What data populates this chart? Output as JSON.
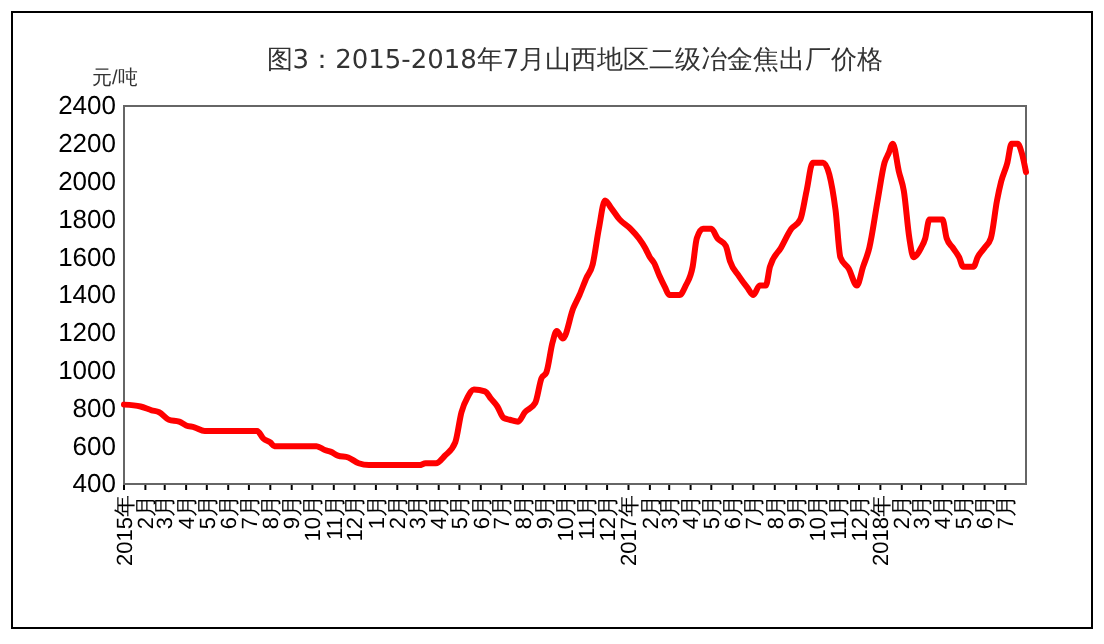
{
  "chart_data": {
    "type": "line",
    "title": "图3：2015-2018年7月山西地区二级冶金焦出厂价格",
    "ylabel": "元/吨",
    "x": [
      "2015-01-01",
      "2015-01-25",
      "2015-02-10",
      "2015-02-21",
      "2015-03-07",
      "2015-03-22",
      "2015-04-01",
      "2015-04-13",
      "2015-04-28",
      "2015-07-13",
      "2015-07-22",
      "2015-08-01",
      "2015-08-07",
      "2015-10-07",
      "2015-10-19",
      "2015-10-28",
      "2015-11-07",
      "2015-11-22",
      "2015-12-07",
      "2015-12-22",
      "2016-03-04",
      "2016-03-13",
      "2016-03-28",
      "2016-04-10",
      "2016-04-25",
      "2016-05-04",
      "2016-05-13",
      "2016-05-22",
      "2016-06-07",
      "2016-06-16",
      "2016-06-25",
      "2016-07-04",
      "2016-07-13",
      "2016-07-25",
      "2016-08-04",
      "2016-08-19",
      "2016-08-28",
      "2016-09-04",
      "2016-09-13",
      "2016-09-19",
      "2016-09-28",
      "2016-10-13",
      "2016-10-22",
      "2016-11-01",
      "2016-11-10",
      "2016-11-19",
      "2016-11-28",
      "2016-12-07",
      "2016-12-19",
      "2017-01-04",
      "2017-01-16",
      "2017-01-25",
      "2017-02-01",
      "2017-02-07",
      "2017-02-15",
      "2017-02-23",
      "2017-03-01",
      "2017-03-16",
      "2017-03-25",
      "2017-04-04",
      "2017-04-10",
      "2017-04-19",
      "2017-05-01",
      "2017-05-10",
      "2017-05-22",
      "2017-05-28",
      "2017-06-10",
      "2017-06-22",
      "2017-07-01",
      "2017-07-10",
      "2017-07-19",
      "2017-07-25",
      "2017-08-10",
      "2017-08-25",
      "2017-09-07",
      "2017-09-16",
      "2017-09-25",
      "2017-10-10",
      "2017-10-28",
      "2017-11-04",
      "2017-11-16",
      "2017-11-28",
      "2017-12-07",
      "2017-12-16",
      "2017-12-28",
      "2018-01-07",
      "2018-01-13",
      "2018-01-19",
      "2018-01-28",
      "2018-02-04",
      "2018-02-12",
      "2018-02-18",
      "2018-03-01",
      "2018-03-07",
      "2018-03-13",
      "2018-04-01",
      "2018-04-07",
      "2018-04-16",
      "2018-04-25",
      "2018-05-01",
      "2018-05-16",
      "2018-05-22",
      "2018-06-01",
      "2018-06-10",
      "2018-06-19",
      "2018-06-25",
      "2018-07-04",
      "2018-07-10",
      "2018-07-19",
      "2018-07-25",
      "2018-07-31"
    ],
    "series": [
      {
        "color": "#ff0000",
        "values": [
          820,
          810,
          790,
          780,
          740,
          730,
          710,
          700,
          680,
          680,
          640,
          620,
          600,
          600,
          580,
          570,
          550,
          540,
          510,
          500,
          500,
          510,
          510,
          550,
          620,
          780,
          860,
          900,
          890,
          850,
          810,
          750,
          740,
          730,
          780,
          830,
          960,
          990,
          1150,
          1210,
          1170,
          1330,
          1400,
          1490,
          1560,
          1750,
          1900,
          1860,
          1800,
          1750,
          1700,
          1650,
          1600,
          1570,
          1500,
          1440,
          1400,
          1400,
          1450,
          1550,
          1700,
          1750,
          1750,
          1700,
          1660,
          1580,
          1500,
          1440,
          1400,
          1450,
          1450,
          1550,
          1650,
          1750,
          1800,
          1950,
          2100,
          2100,
          1850,
          1600,
          1540,
          1450,
          1550,
          1650,
          1900,
          2100,
          2150,
          2200,
          2050,
          1950,
          1700,
          1600,
          1650,
          1700,
          1800,
          1800,
          1700,
          1650,
          1600,
          1550,
          1550,
          1600,
          1650,
          1700,
          1900,
          2000,
          2100,
          2200,
          2200,
          2150,
          2050
        ]
      }
    ],
    "xlim": [
      "2015-01-01",
      "2018-07-31"
    ],
    "xticks": [
      {
        "value": "2015-01",
        "label": "2015年"
      },
      {
        "value": "2015-02",
        "label": "2月"
      },
      {
        "value": "2015-03",
        "label": "3月"
      },
      {
        "value": "2015-04",
        "label": "4月"
      },
      {
        "value": "2015-05",
        "label": "5月"
      },
      {
        "value": "2015-06",
        "label": "6月"
      },
      {
        "value": "2015-07",
        "label": "7月"
      },
      {
        "value": "2015-08",
        "label": "8月"
      },
      {
        "value": "2015-09",
        "label": "9月"
      },
      {
        "value": "2015-10",
        "label": "10月"
      },
      {
        "value": "2015-11",
        "label": "11月"
      },
      {
        "value": "2015-12",
        "label": "12月"
      },
      {
        "value": "2016-01",
        "label": "1月"
      },
      {
        "value": "2016-02",
        "label": "2月"
      },
      {
        "value": "2016-03",
        "label": "3月"
      },
      {
        "value": "2016-04",
        "label": "4月"
      },
      {
        "value": "2016-05",
        "label": "5月"
      },
      {
        "value": "2016-06",
        "label": "6月"
      },
      {
        "value": "2016-07",
        "label": "7月"
      },
      {
        "value": "2016-08",
        "label": "8月"
      },
      {
        "value": "2016-09",
        "label": "9月"
      },
      {
        "value": "2016-10",
        "label": "10月"
      },
      {
        "value": "2016-11",
        "label": "11月"
      },
      {
        "value": "2016-12",
        "label": "12月"
      },
      {
        "value": "2017-01",
        "label": "2017年"
      },
      {
        "value": "2017-02",
        "label": "2月"
      },
      {
        "value": "2017-03",
        "label": "3月"
      },
      {
        "value": "2017-04",
        "label": "4月"
      },
      {
        "value": "2017-05",
        "label": "5月"
      },
      {
        "value": "2017-06",
        "label": "6月"
      },
      {
        "value": "2017-07",
        "label": "7月"
      },
      {
        "value": "2017-08",
        "label": "8月"
      },
      {
        "value": "2017-09",
        "label": "9月"
      },
      {
        "value": "2017-10",
        "label": "10月"
      },
      {
        "value": "2017-11",
        "label": "11月"
      },
      {
        "value": "2017-12",
        "label": "12月"
      },
      {
        "value": "2018-01",
        "label": "2018年"
      },
      {
        "value": "2018-02",
        "label": "2月"
      },
      {
        "value": "2018-03",
        "label": "3月"
      },
      {
        "value": "2018-04",
        "label": "4月"
      },
      {
        "value": "2018-05",
        "label": "5月"
      },
      {
        "value": "2018-06",
        "label": "6月"
      },
      {
        "value": "2018-07",
        "label": "7月"
      }
    ],
    "ylim": [
      400,
      2400
    ],
    "yticks": [
      400,
      600,
      800,
      1000,
      1200,
      1400,
      1600,
      1800,
      2000,
      2200,
      2400
    ],
    "marker": "none",
    "line_style": "solid"
  }
}
